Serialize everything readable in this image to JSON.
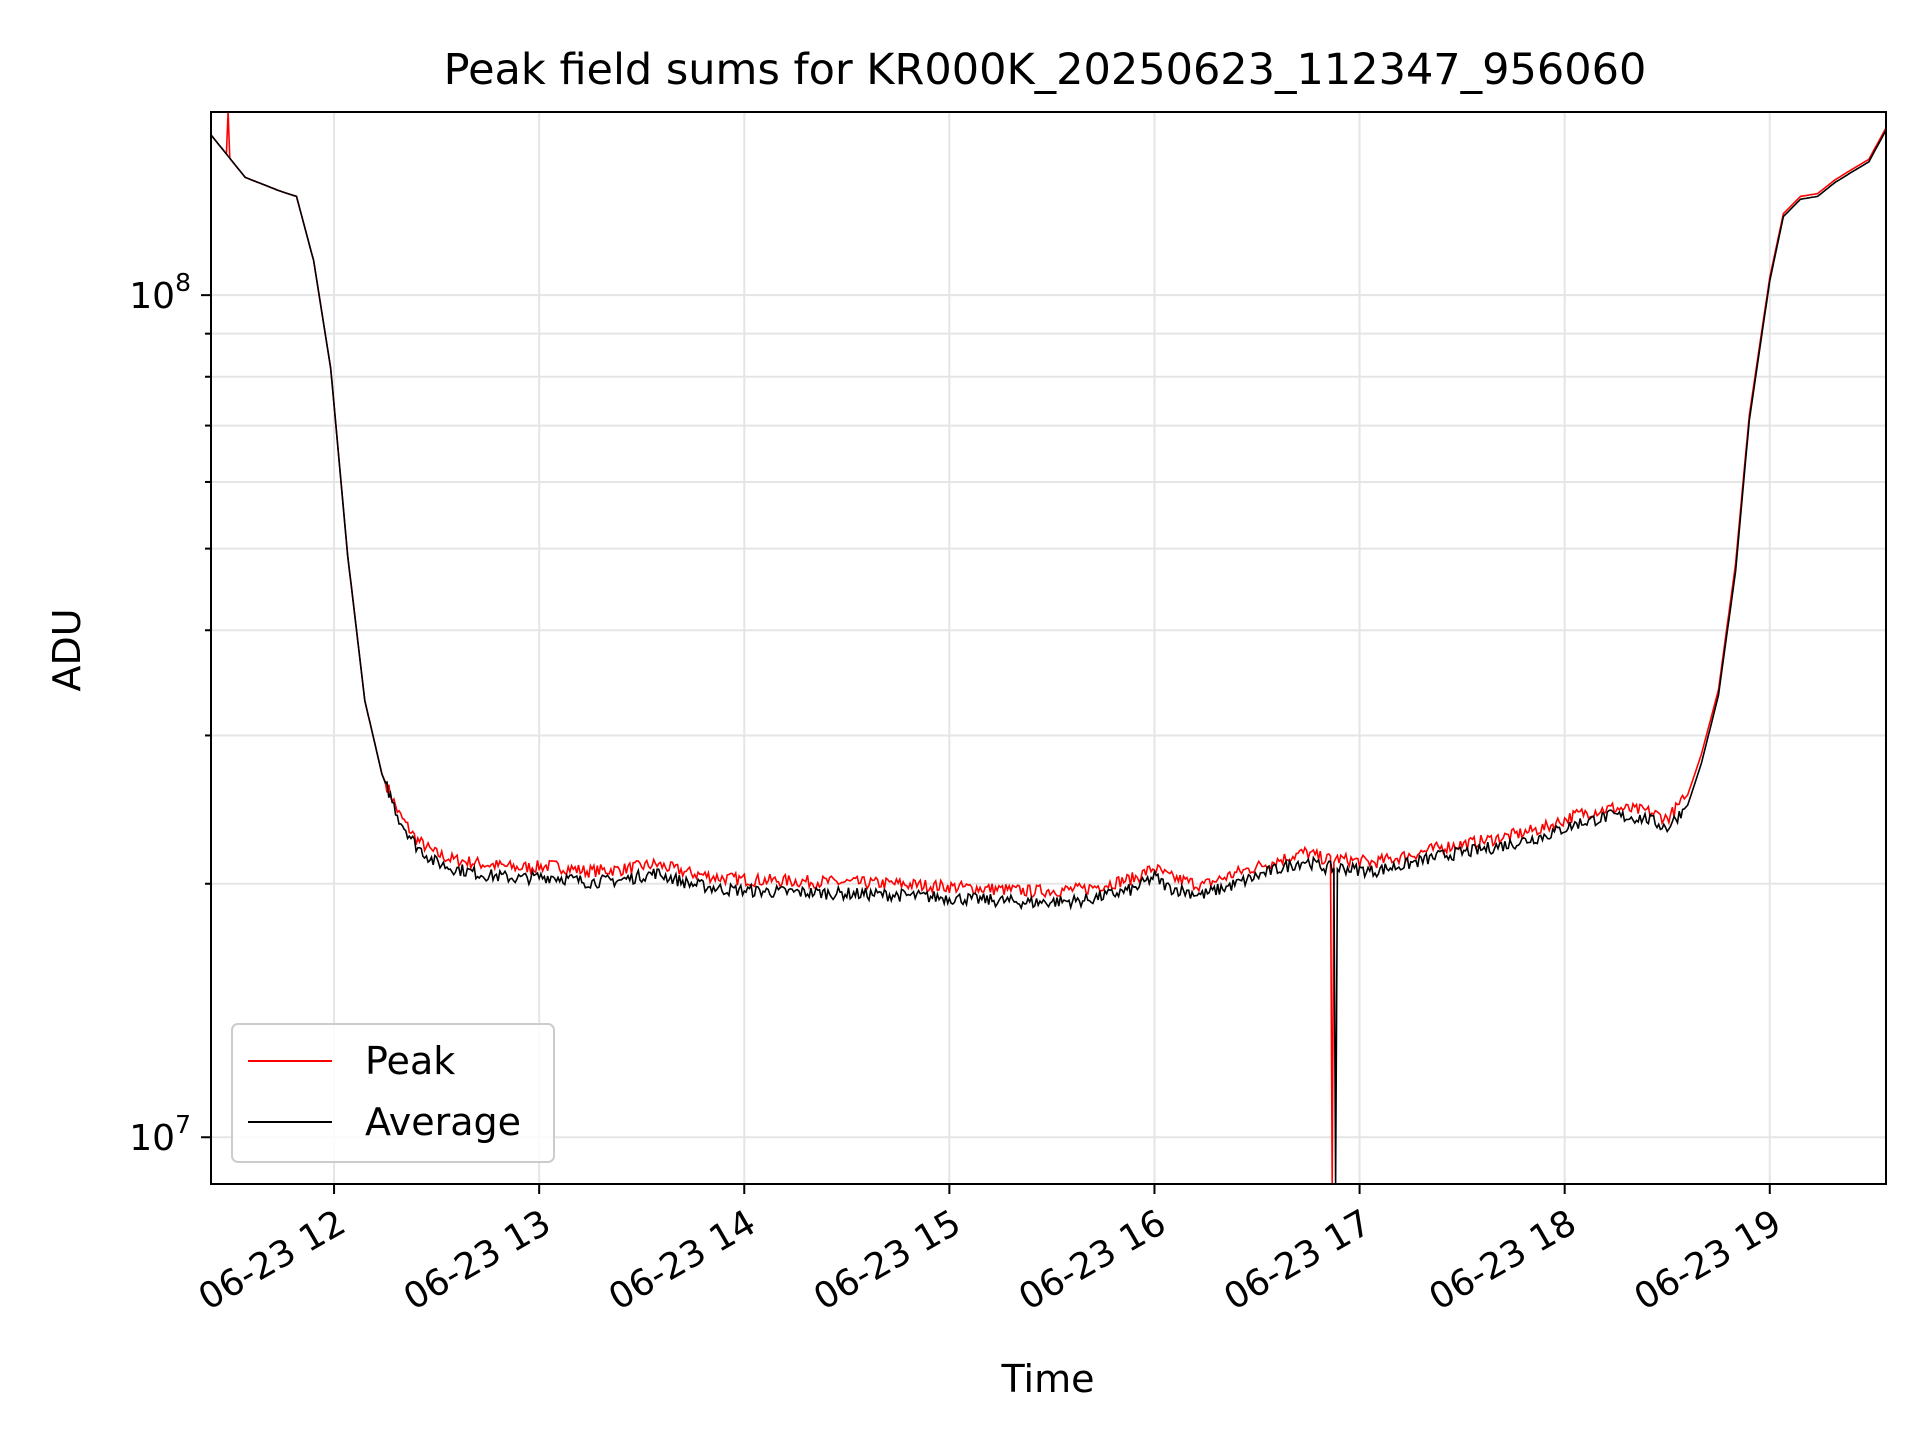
{
  "chart_data": {
    "type": "line",
    "title": "Peak field sums for KR000K_20250623_112347_956060",
    "xlabel": "Time",
    "ylabel": "ADU",
    "y_scale": "log",
    "ylim": [
      8800000,
      165000000
    ],
    "xlim": [
      "2025-06-23 11:24",
      "2025-06-23 19:34"
    ],
    "x_ticks": [
      "06-23 12",
      "06-23 13",
      "06-23 14",
      "06-23 15",
      "06-23 16",
      "06-23 17",
      "06-23 18",
      "06-23 19"
    ],
    "x_tick_rotation": 30,
    "y_tick_labels": [
      {
        "value": 10000000,
        "base": "10",
        "exp": "7"
      },
      {
        "value": 100000000,
        "base": "10",
        "exp": "8"
      }
    ],
    "grid": true,
    "legend_placement": "lower-left",
    "x": [
      "11:24",
      "11:34",
      "11:44",
      "11:49",
      "11:54",
      "11:59",
      "12:04",
      "12:09",
      "12:14",
      "12:19",
      "12:24",
      "12:29",
      "12:34",
      "12:44",
      "12:54",
      "13:04",
      "13:14",
      "13:24",
      "13:34",
      "13:44",
      "13:54",
      "14:04",
      "14:24",
      "14:44",
      "15:04",
      "15:24",
      "15:39",
      "15:44",
      "15:54",
      "16:00",
      "16:04",
      "16:14",
      "16:24",
      "16:34",
      "16:44",
      "16:50",
      "16:54",
      "17:04",
      "17:14",
      "17:24",
      "17:34",
      "17:44",
      "17:54",
      "18:04",
      "18:14",
      "18:24",
      "18:30",
      "18:36",
      "18:40",
      "18:45",
      "18:50",
      "18:54",
      "19:00",
      "19:04",
      "19:09",
      "19:14",
      "19:19",
      "19:24",
      "19:29",
      "19:34"
    ],
    "series": [
      {
        "name": "Peak",
        "color": "#ff0000",
        "values": [
          155000000,
          138000000,
          133000000,
          131000000,
          110000000,
          82000000,
          49000000,
          33000000,
          27000000,
          24200000,
          22600000,
          21800000,
          21400000,
          21100000,
          20900000,
          21000000,
          20700000,
          20800000,
          21100000,
          20600000,
          20300000,
          20200000,
          20100000,
          20000000,
          19800000,
          19600000,
          19700000,
          19900000,
          20300000,
          20900000,
          20400000,
          19900000,
          20600000,
          21200000,
          21800000,
          21400000,
          21400000,
          21200000,
          21600000,
          22100000,
          22400000,
          22800000,
          23300000,
          24200000,
          24600000,
          24400000,
          23900000,
          25500000,
          28500000,
          34000000,
          48000000,
          72000000,
          105000000,
          125000000,
          131000000,
          132000000,
          137000000,
          141000000,
          145000000,
          158000000
        ]
      },
      {
        "name": "Average",
        "color": "#000000",
        "values": [
          155000000,
          138000000,
          133000000,
          131000000,
          110000000,
          82000000,
          49000000,
          33000000,
          27000000,
          23900000,
          22200000,
          21300000,
          20900000,
          20500000,
          20300000,
          20400000,
          20100000,
          20200000,
          20600000,
          20000000,
          19700000,
          19600000,
          19500000,
          19400000,
          19200000,
          19000000,
          19100000,
          19300000,
          19700000,
          20400000,
          19800000,
          19400000,
          20000000,
          20700000,
          21300000,
          20900000,
          20900000,
          20700000,
          21100000,
          21600000,
          21900000,
          22300000,
          22800000,
          23600000,
          24100000,
          23900000,
          23300000,
          24800000,
          27800000,
          33500000,
          47000000,
          71000000,
          104000000,
          124000000,
          130000000,
          131000000,
          136000000,
          140000000,
          144000000,
          157000000
        ]
      }
    ],
    "annotations": [
      {
        "series": "Peak",
        "type": "spike",
        "x": "11:29",
        "value": 165000000
      },
      {
        "series": "Average",
        "type": "dip",
        "x": "16:53",
        "value": 8800000
      },
      {
        "series": "Peak",
        "type": "dip",
        "x": "16:52",
        "value": 8800000
      }
    ]
  }
}
